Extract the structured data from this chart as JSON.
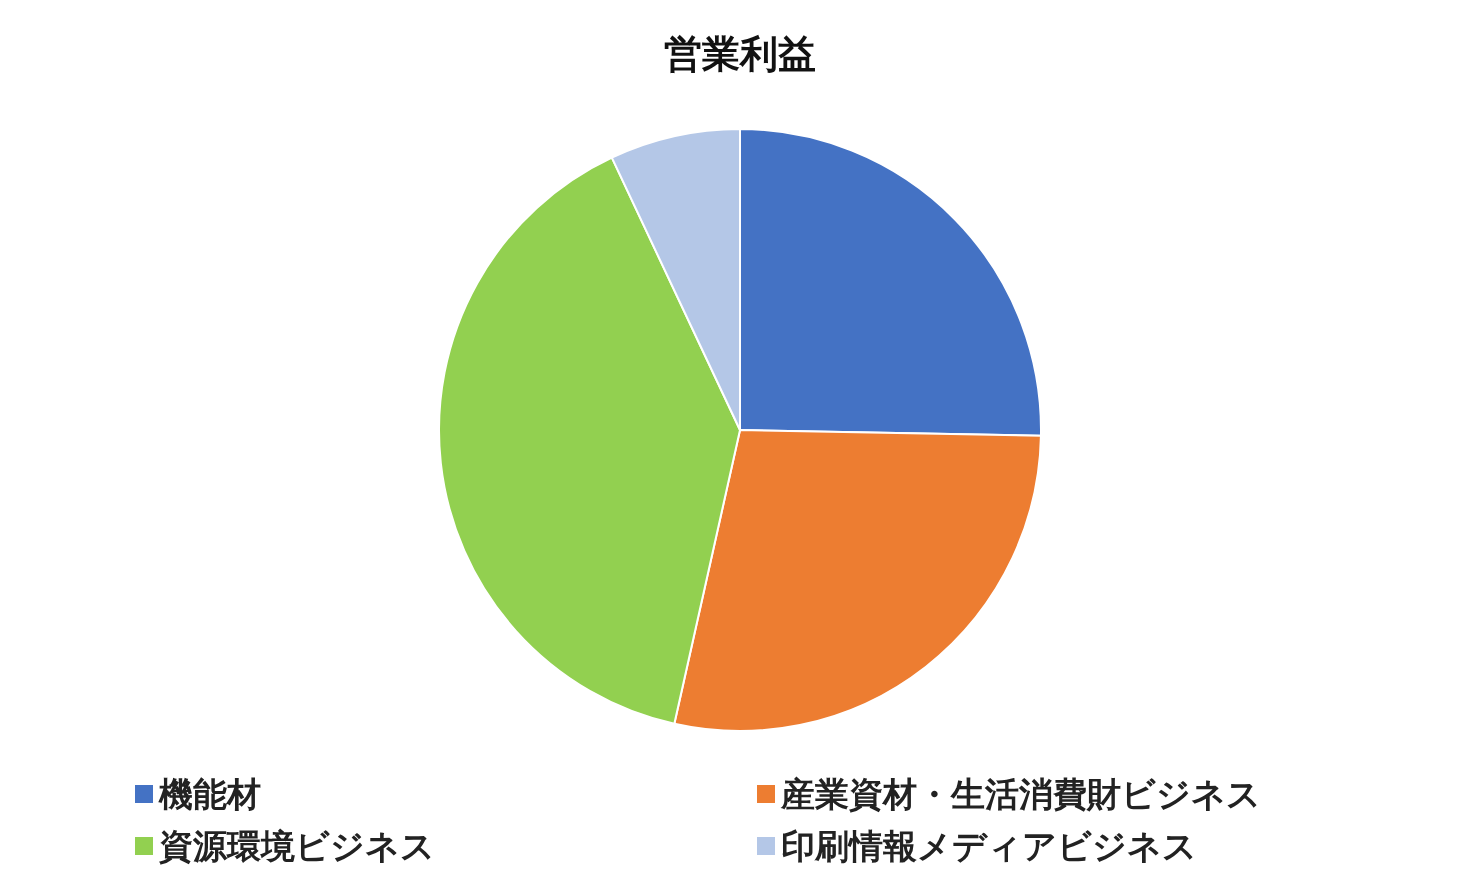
{
  "chart_data": {
    "type": "pie",
    "title": "営業利益",
    "categories": [
      "機能材",
      "産業資材・生活消費財ビジネス",
      "資源環境ビジネス",
      "印刷情報メディアビジネス"
    ],
    "values": [
      25.3,
      28.2,
      39.5,
      7.0
    ],
    "colors": [
      "#4472c4",
      "#ed7d31",
      "#92d050",
      "#b4c7e7"
    ],
    "legend": "bottom"
  }
}
